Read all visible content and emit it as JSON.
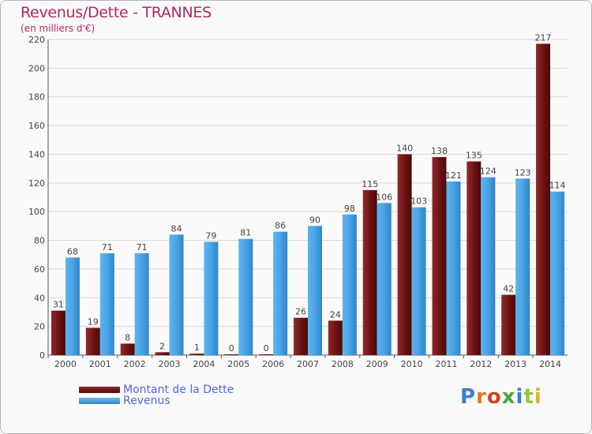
{
  "chart": {
    "title": "Revenus/Dette - TRANNES",
    "subtitle": "(en milliers d'€)"
  },
  "logo": {
    "text": "Proxiti",
    "colors": [
      "#3a7fd6",
      "#e07b1f",
      "#d0451b",
      "#4aa83a",
      "#3a7fd6",
      "#9bc43a",
      "#e0b21f"
    ]
  },
  "colors": {
    "title": "#b12a5b",
    "dette": "#7a1a1a",
    "revenus": "#4aa3e6",
    "legend_text": "#4f69e0"
  },
  "chart_data": {
    "type": "bar",
    "title": "Revenus/Dette - TRANNES",
    "subtitle": "(en milliers d'€)",
    "xlabel": "",
    "ylabel": "",
    "ylim": [
      0,
      220
    ],
    "yticks": [
      0,
      20,
      40,
      60,
      80,
      100,
      120,
      140,
      160,
      180,
      200,
      220
    ],
    "grid": "horizontal",
    "legend_position": "bottom-left",
    "categories": [
      "2000",
      "2001",
      "2002",
      "2003",
      "2004",
      "2005",
      "2006",
      "2007",
      "2008",
      "2009",
      "2010",
      "2011",
      "2012",
      "2013",
      "2014"
    ],
    "series": [
      {
        "name": "Montant de la Dette",
        "color": "#7a1a1a",
        "values": [
          31,
          19,
          8,
          2,
          1,
          0,
          0,
          26,
          24,
          115,
          140,
          138,
          135,
          42,
          217
        ]
      },
      {
        "name": "Revenus",
        "color": "#4aa3e6",
        "values": [
          68,
          71,
          71,
          84,
          79,
          81,
          86,
          90,
          98,
          106,
          103,
          121,
          124,
          123,
          114
        ]
      }
    ]
  }
}
